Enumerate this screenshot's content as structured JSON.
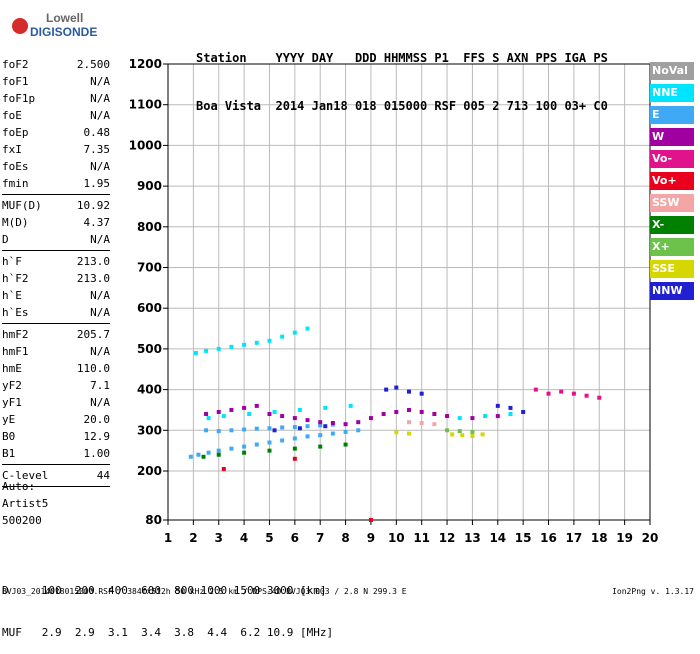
{
  "logo": {
    "top": "Lowell",
    "bottom": "DIGISONDE"
  },
  "header": {
    "labels": "Station    YYYY DAY   DDD HHMMSS P1  FFS S AXN PPS IGA PS",
    "values": "Boa Vista  2014 Jan18 018 015000 RSF 005 2 713 100 03+ C0"
  },
  "params": {
    "group1": [
      {
        "name": "foF2",
        "value": "2.500"
      },
      {
        "name": "foF1",
        "value": "N/A"
      },
      {
        "name": "foF1p",
        "value": "N/A"
      },
      {
        "name": "foE",
        "value": "N/A"
      },
      {
        "name": "foEp",
        "value": "0.48"
      },
      {
        "name": "fxI",
        "value": "7.35"
      },
      {
        "name": "foEs",
        "value": "N/A"
      },
      {
        "name": "fmin",
        "value": "1.95"
      }
    ],
    "group2": [
      {
        "name": "MUF(D)",
        "value": "10.92"
      },
      {
        "name": "M(D)",
        "value": "4.37"
      },
      {
        "name": "D",
        "value": "N/A"
      }
    ],
    "group3": [
      {
        "name": "h`F",
        "value": "213.0"
      },
      {
        "name": "h`F2",
        "value": "213.0"
      },
      {
        "name": "h`E",
        "value": "N/A"
      },
      {
        "name": "h`Es",
        "value": "N/A"
      }
    ],
    "group4": [
      {
        "name": "hmF2",
        "value": "205.7"
      },
      {
        "name": "hmF1",
        "value": "N/A"
      },
      {
        "name": "hmE",
        "value": "110.0"
      },
      {
        "name": "yF2",
        "value": "7.1"
      },
      {
        "name": "yF1",
        "value": "N/A"
      },
      {
        "name": "yE",
        "value": "20.0"
      },
      {
        "name": "B0",
        "value": "12.9"
      },
      {
        "name": "B1",
        "value": "1.00"
      }
    ],
    "clevel": {
      "name": "C-level",
      "value": "44"
    }
  },
  "auto": {
    "label": "Auto:",
    "artist": "Artist5",
    "code": "500200"
  },
  "legend": [
    {
      "label": "NoVal",
      "color": "#a0a0a0"
    },
    {
      "label": "NNE",
      "color": "#00e5ff"
    },
    {
      "label": "E",
      "color": "#3fa9f5"
    },
    {
      "label": "W",
      "color": "#a000a0"
    },
    {
      "label": "Vo-",
      "color": "#e0138c"
    },
    {
      "label": "Vo+",
      "color": "#e8001c"
    },
    {
      "label": "SSW",
      "color": "#f4a6a6"
    },
    {
      "label": "X-",
      "color": "#007f00"
    },
    {
      "label": "X+",
      "color": "#6cc24a"
    },
    {
      "label": "SSE",
      "color": "#d6d600"
    },
    {
      "label": "NNW",
      "color": "#2020d0"
    }
  ],
  "dmuf": {
    "d_row": "D     100  200  400  600  800 1000 1500 3000 [km]",
    "muf_row": "MUF   2.9  2.9  3.1  3.4  3.8  4.4  6.2 10.9 [MHz]"
  },
  "footer": "BVJ03_2014018015000.RSF / 384fx512h 50 kHz 2.5 km / DPS-4D BVJ03 003 / 2.8 N 299.3 E",
  "version": "Ion2Png v. 1.3.17",
  "chart_data": {
    "type": "scatter",
    "xlim": [
      1,
      20
    ],
    "ylim": [
      80,
      1200
    ],
    "x_ticks": [
      1,
      2,
      3,
      4,
      5,
      6,
      7,
      8,
      9,
      10,
      11,
      12,
      13,
      14,
      15,
      16,
      17,
      18,
      19,
      20
    ],
    "y_ticks": [
      80,
      200,
      300,
      400,
      500,
      600,
      700,
      800,
      900,
      1000,
      1100,
      1200
    ],
    "grid": true,
    "legend_position": "right",
    "series": [
      {
        "name": "E",
        "color": "#3fa9f5",
        "points": [
          [
            1.9,
            235
          ],
          [
            2.2,
            240
          ],
          [
            2.6,
            245
          ],
          [
            3.0,
            250
          ],
          [
            3.5,
            255
          ],
          [
            4.0,
            260
          ],
          [
            4.5,
            265
          ],
          [
            5.0,
            270
          ],
          [
            5.5,
            275
          ],
          [
            6.0,
            280
          ],
          [
            6.5,
            285
          ],
          [
            7.0,
            288
          ],
          [
            7.5,
            292
          ],
          [
            8.0,
            296
          ],
          [
            8.5,
            300
          ],
          [
            2.5,
            300
          ],
          [
            3.0,
            298
          ],
          [
            3.5,
            300
          ],
          [
            4.0,
            302
          ],
          [
            4.5,
            304
          ],
          [
            5.0,
            305
          ],
          [
            5.5,
            307
          ],
          [
            6.0,
            308
          ],
          [
            6.5,
            310
          ],
          [
            7.0,
            312
          ],
          [
            7.5,
            314
          ]
        ]
      },
      {
        "name": "NNE",
        "color": "#00e5ff",
        "points": [
          [
            2.1,
            490
          ],
          [
            2.5,
            495
          ],
          [
            3.0,
            500
          ],
          [
            3.5,
            505
          ],
          [
            4.0,
            510
          ],
          [
            4.5,
            515
          ],
          [
            5.0,
            520
          ],
          [
            5.5,
            530
          ],
          [
            6.0,
            540
          ],
          [
            6.5,
            550
          ],
          [
            2.6,
            330
          ],
          [
            3.2,
            335
          ],
          [
            4.2,
            340
          ],
          [
            5.2,
            345
          ],
          [
            6.2,
            350
          ],
          [
            7.2,
            355
          ],
          [
            8.2,
            360
          ],
          [
            12.5,
            330
          ],
          [
            13.5,
            335
          ],
          [
            14.5,
            340
          ]
        ]
      },
      {
        "name": "W",
        "color": "#a000a0",
        "points": [
          [
            2.5,
            340
          ],
          [
            3.0,
            345
          ],
          [
            3.5,
            350
          ],
          [
            4.0,
            355
          ],
          [
            4.5,
            360
          ],
          [
            5.0,
            340
          ],
          [
            5.5,
            335
          ],
          [
            6.0,
            330
          ],
          [
            6.5,
            325
          ],
          [
            7.0,
            320
          ],
          [
            7.5,
            318
          ],
          [
            8.0,
            315
          ],
          [
            8.5,
            320
          ],
          [
            9.0,
            330
          ],
          [
            9.5,
            340
          ],
          [
            10.0,
            345
          ],
          [
            10.5,
            350
          ],
          [
            11.0,
            345
          ],
          [
            11.5,
            340
          ],
          [
            12.0,
            335
          ],
          [
            13.0,
            330
          ],
          [
            14.0,
            335
          ]
        ]
      },
      {
        "name": "Vo-",
        "color": "#e0138c",
        "points": [
          [
            16.0,
            390
          ],
          [
            16.5,
            395
          ],
          [
            17.0,
            390
          ],
          [
            17.5,
            385
          ],
          [
            18.0,
            380
          ],
          [
            15.5,
            400
          ]
        ]
      },
      {
        "name": "Vo+",
        "color": "#e8001c",
        "points": [
          [
            3.2,
            205
          ],
          [
            6.0,
            230
          ],
          [
            9.0,
            80
          ]
        ]
      },
      {
        "name": "SSW",
        "color": "#f4a6a6",
        "points": [
          [
            10.5,
            320
          ],
          [
            11.0,
            318
          ],
          [
            11.5,
            315
          ]
        ]
      },
      {
        "name": "X-",
        "color": "#007f00",
        "points": [
          [
            2.4,
            235
          ],
          [
            3.0,
            240
          ],
          [
            4.0,
            245
          ],
          [
            5.0,
            250
          ],
          [
            6.0,
            255
          ],
          [
            7.0,
            260
          ],
          [
            8.0,
            265
          ]
        ]
      },
      {
        "name": "X+",
        "color": "#6cc24a",
        "points": [
          [
            12.0,
            300
          ],
          [
            12.5,
            298
          ],
          [
            13.0,
            296
          ]
        ]
      },
      {
        "name": "SSE",
        "color": "#d6d600",
        "points": [
          [
            12.2,
            290
          ],
          [
            12.6,
            288
          ],
          [
            13.0,
            286
          ],
          [
            13.4,
            290
          ],
          [
            10.0,
            295
          ],
          [
            10.5,
            292
          ]
        ]
      },
      {
        "name": "NNW",
        "color": "#2020d0",
        "points": [
          [
            9.6,
            400
          ],
          [
            10.0,
            405
          ],
          [
            10.5,
            395
          ],
          [
            11.0,
            390
          ],
          [
            14.0,
            360
          ],
          [
            14.5,
            355
          ],
          [
            15.0,
            345
          ],
          [
            5.2,
            300
          ],
          [
            6.2,
            305
          ],
          [
            7.2,
            310
          ]
        ]
      }
    ]
  }
}
